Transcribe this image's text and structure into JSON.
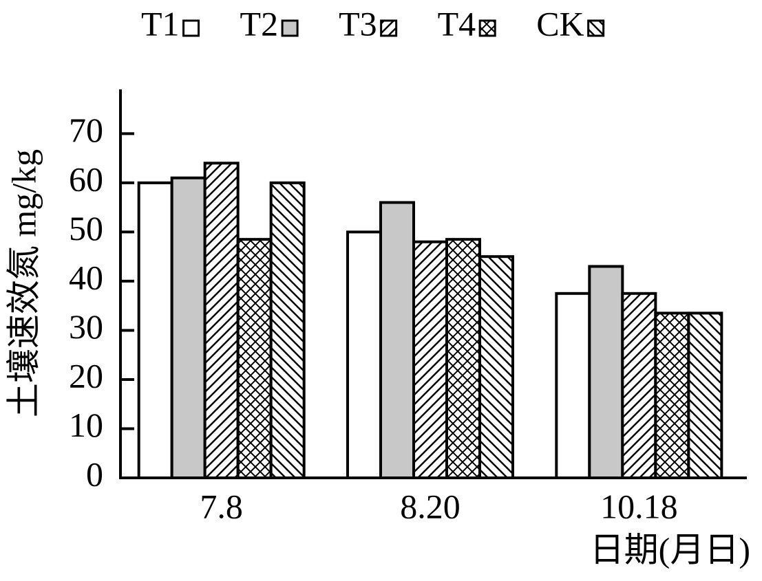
{
  "chart_data": {
    "type": "bar",
    "y_label": "土壤速效氮 mg/kg",
    "x_label": "日期(月日)",
    "categories": [
      "7.8",
      "8.20",
      "10.18"
    ],
    "series": [
      {
        "name": "T1",
        "color": "#ffffff",
        "pattern": "solid",
        "values": [
          60,
          50,
          37.5
        ]
      },
      {
        "name": "T2",
        "color": "#c8c8c8",
        "pattern": "solid",
        "values": [
          61,
          56,
          43
        ]
      },
      {
        "name": "T3",
        "color": "#ffffff",
        "pattern": "forward-diagonal",
        "values": [
          64,
          48,
          37.5
        ]
      },
      {
        "name": "T4",
        "color": "#ffffff",
        "pattern": "crosshatch",
        "values": [
          48.5,
          48.5,
          33.5
        ]
      },
      {
        "name": "CK",
        "color": "#ffffff",
        "pattern": "back-diagonal",
        "values": [
          60,
          45,
          33.5
        ]
      }
    ],
    "ylim": [
      0,
      79
    ],
    "yticks": [
      0,
      10,
      20,
      30,
      40,
      50,
      60,
      70
    ],
    "legend": "top"
  }
}
